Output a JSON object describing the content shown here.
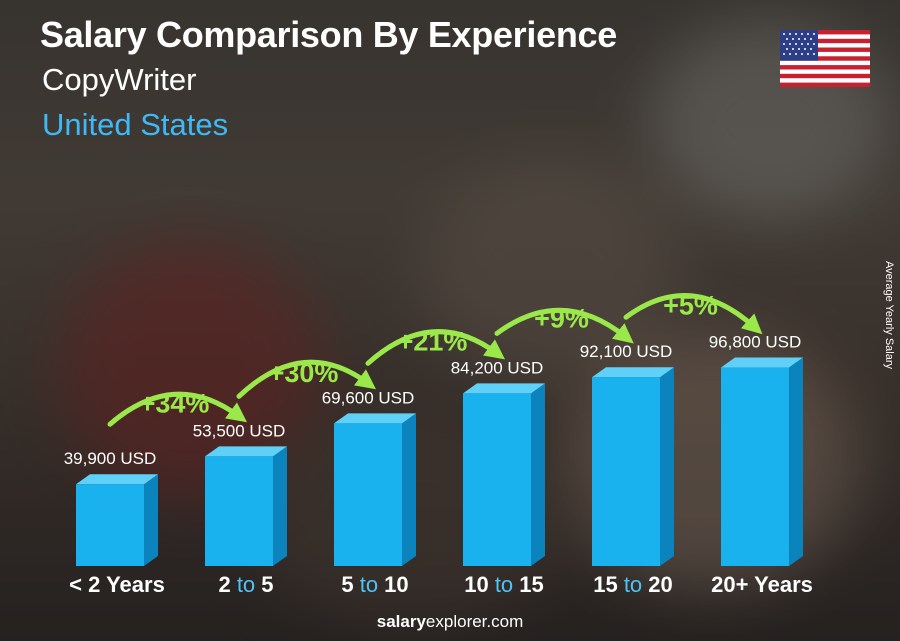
{
  "title": "Salary Comparison By Experience",
  "job": "CopyWriter",
  "country": "United States",
  "y_axis_label": "Average Yearly Salary",
  "footer": {
    "brand_bold": "salary",
    "brand_rest": "explorer.com"
  },
  "colors": {
    "bar_front": "#1ab2ee",
    "bar_side": "#0b83bd",
    "bar_top": "#5fd0f8",
    "accent": "#3fb9f5",
    "increase": "#9be84a"
  },
  "chart_data": {
    "type": "bar",
    "categories": [
      "< 2 Years",
      "2 to 5",
      "5 to 10",
      "10 to 15",
      "15 to 20",
      "20+ Years"
    ],
    "values": [
      39900,
      53500,
      69600,
      84200,
      92100,
      96800
    ],
    "value_labels": [
      "39,900 USD",
      "53,500 USD",
      "69,600 USD",
      "84,200 USD",
      "92,100 USD",
      "96,800 USD"
    ],
    "increases": [
      "+34%",
      "+30%",
      "+21%",
      "+9%",
      "+5%"
    ],
    "unit": "USD",
    "ylabel": "Average Yearly Salary"
  }
}
